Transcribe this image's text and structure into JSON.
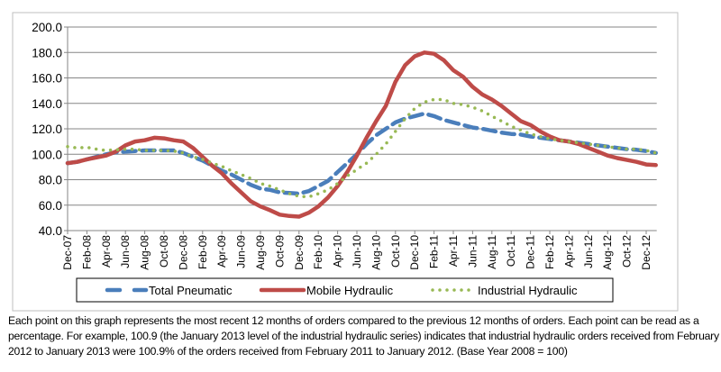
{
  "chart_data": {
    "type": "line",
    "title": "",
    "xlabel": "",
    "ylabel": "",
    "ylim": [
      40,
      200
    ],
    "yticks": [
      "40.0",
      "60.0",
      "80.0",
      "100.0",
      "120.0",
      "140.0",
      "160.0",
      "180.0",
      "200.0"
    ],
    "grid": true,
    "legend_position": "bottom",
    "x": [
      "Dec-07",
      "Jan-08",
      "Feb-08",
      "Mar-08",
      "Apr-08",
      "May-08",
      "Jun-08",
      "Jul-08",
      "Aug-08",
      "Sep-08",
      "Oct-08",
      "Nov-08",
      "Dec-08",
      "Jan-09",
      "Feb-09",
      "Mar-09",
      "Apr-09",
      "May-09",
      "Jun-09",
      "Jul-09",
      "Aug-09",
      "Sep-09",
      "Oct-09",
      "Nov-09",
      "Dec-09",
      "Jan-10",
      "Feb-10",
      "Mar-10",
      "Apr-10",
      "May-10",
      "Jun-10",
      "Jul-10",
      "Aug-10",
      "Sep-10",
      "Oct-10",
      "Nov-10",
      "Dec-10",
      "Jan-11",
      "Feb-11",
      "Mar-11",
      "Apr-11",
      "May-11",
      "Jun-11",
      "Jul-11",
      "Aug-11",
      "Sep-11",
      "Oct-11",
      "Nov-11",
      "Dec-11",
      "Jan-12",
      "Feb-12",
      "Mar-12",
      "Apr-12",
      "May-12",
      "Jun-12",
      "Jul-12",
      "Aug-12",
      "Sep-12",
      "Oct-12",
      "Nov-12",
      "Dec-12",
      "Jan-13"
    ],
    "xtick_labels": [
      "Dec-07",
      "Feb-08",
      "Apr-08",
      "Jun-08",
      "Aug-08",
      "Oct-08",
      "Dec-08",
      "Feb-09",
      "Apr-09",
      "Jun-09",
      "Aug-09",
      "Oct-09",
      "Dec-09",
      "Feb-10",
      "Apr-10",
      "Jun-10",
      "Aug-10",
      "Oct-10",
      "Dec-10",
      "Feb-11",
      "Apr-11",
      "Jun-11",
      "Aug-11",
      "Oct-11",
      "Dec-11",
      "Feb-12",
      "Apr-12",
      "Jun-12",
      "Aug-12",
      "Oct-12",
      "Dec-12"
    ],
    "series": [
      {
        "name": "Total Pneumatic",
        "color": "#4a7ebb",
        "style": "dashed",
        "values": [
          93,
          94,
          96,
          98,
          100,
          101.5,
          102,
          102.5,
          103,
          103,
          103,
          103,
          101,
          98,
          95,
          91,
          87,
          84,
          80,
          76,
          73,
          72,
          70,
          69.5,
          69,
          71,
          75,
          79,
          86,
          93,
          100,
          108,
          115,
          120,
          125,
          128,
          130,
          132,
          130,
          127,
          125,
          123,
          121,
          120,
          118.5,
          117,
          116,
          115.5,
          114,
          113,
          112,
          111,
          110,
          109,
          108,
          107,
          106,
          105,
          104,
          103.5,
          102.5,
          101
        ]
      },
      {
        "name": "Mobile Hydraulic",
        "color": "#be4b48",
        "style": "solid",
        "values": [
          93,
          94,
          96,
          97.5,
          99,
          102,
          107,
          110,
          111,
          113,
          112.5,
          111,
          110,
          105,
          98,
          91,
          85,
          77,
          70,
          63,
          59,
          56,
          52.5,
          51.5,
          51,
          54,
          59,
          66,
          75,
          86,
          99,
          113,
          126,
          138,
          157,
          170,
          177,
          180,
          179,
          174,
          166,
          161,
          153,
          147,
          143,
          138,
          132,
          126,
          123,
          118,
          114,
          111,
          110,
          108,
          105,
          102,
          99,
          97,
          95.5,
          94,
          92,
          91.5
        ]
      },
      {
        "name": "Industrial Hydraulic",
        "color": "#98b954",
        "style": "dotted",
        "values": [
          106,
          105,
          105.5,
          104,
          103,
          103.5,
          104,
          104,
          103,
          103,
          103,
          102.5,
          101,
          98,
          96,
          93,
          90.5,
          87,
          84,
          81,
          77,
          75,
          72,
          69,
          67,
          66.5,
          69,
          72,
          77,
          83,
          88,
          93,
          100,
          108,
          118,
          128,
          136,
          141,
          143,
          143,
          140,
          139,
          137,
          134,
          130,
          126,
          122,
          119,
          116,
          114,
          112,
          111,
          110,
          109,
          108,
          107,
          106,
          105,
          104,
          104,
          103,
          100.9
        ]
      }
    ]
  },
  "caption": "Each point on this graph represents the most recent 12 months of orders compared to the previous 12 months of orders.  Each point can be read as a percentage.  For example, 100.9 (the January 2013 level of the industrial hydraulic series) indicates that industrial hydraulic orders received from February 2012 to January 2013 were 100.9% of the orders received from February 2011 to January 2012.  (Base Year 2008 = 100)"
}
